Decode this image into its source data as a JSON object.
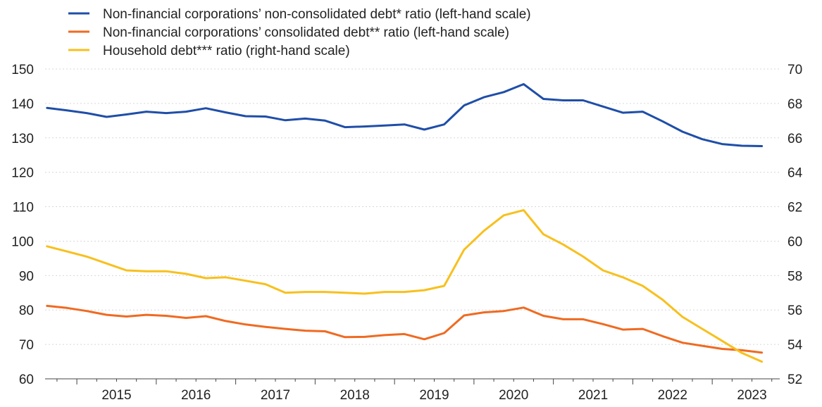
{
  "chart_data": {
    "type": "line",
    "title": "",
    "xlabel": "",
    "ylabel": "",
    "ylim": [
      60,
      150
    ],
    "y2lim": [
      52,
      70
    ],
    "yticks": [
      60,
      70,
      80,
      90,
      100,
      110,
      120,
      130,
      140,
      150
    ],
    "y2ticks": [
      52,
      54,
      56,
      58,
      60,
      62,
      64,
      66,
      68,
      70
    ],
    "xlim": [
      2014.6,
      2023.85
    ],
    "xtick_labels": [
      "2015",
      "2016",
      "2017",
      "2018",
      "2019",
      "2020",
      "2021",
      "2022",
      "2023"
    ],
    "xtick_positions": [
      2015,
      2016,
      2017,
      2018,
      2019,
      2020,
      2021,
      2022,
      2023
    ],
    "grid": "horizontal",
    "legend_position": "top-left",
    "series": [
      {
        "name": "Non-financial corporations’ non-consolidated debt* ratio (left-hand scale)",
        "axis": "left",
        "color": "#1f4ea8",
        "x": [
          2014.625,
          2014.875,
          2015.125,
          2015.375,
          2015.625,
          2015.875,
          2016.125,
          2016.375,
          2016.625,
          2016.875,
          2017.125,
          2017.375,
          2017.625,
          2017.875,
          2018.125,
          2018.375,
          2018.625,
          2018.875,
          2019.125,
          2019.375,
          2019.625,
          2019.875,
          2020.125,
          2020.375,
          2020.625,
          2020.875,
          2021.125,
          2021.375,
          2021.625,
          2021.875,
          2022.125,
          2022.375,
          2022.625,
          2022.875,
          2023.125,
          2023.375,
          2023.625
        ],
        "y": [
          138.7,
          138.0,
          137.2,
          136.1,
          136.8,
          137.6,
          137.2,
          137.6,
          138.6,
          137.4,
          136.3,
          136.2,
          135.1,
          135.6,
          135.0,
          133.1,
          133.3,
          133.6,
          133.9,
          132.4,
          133.9,
          139.4,
          141.8,
          143.3,
          145.6,
          141.3,
          140.9,
          140.9,
          139.1,
          137.3,
          137.6,
          134.8,
          131.8,
          129.6,
          128.2,
          127.7,
          127.6
        ]
      },
      {
        "name": "Non-financial corporations’ consolidated debt** ratio (left-hand scale)",
        "axis": "left",
        "color": "#f06a21",
        "x": [
          2014.625,
          2014.875,
          2015.125,
          2015.375,
          2015.625,
          2015.875,
          2016.125,
          2016.375,
          2016.625,
          2016.875,
          2017.125,
          2017.375,
          2017.625,
          2017.875,
          2018.125,
          2018.375,
          2018.625,
          2018.875,
          2019.125,
          2019.375,
          2019.625,
          2019.875,
          2020.125,
          2020.375,
          2020.625,
          2020.875,
          2021.125,
          2021.375,
          2021.625,
          2021.875,
          2022.125,
          2022.375,
          2022.625,
          2022.875,
          2023.125,
          2023.375,
          2023.625
        ],
        "y": [
          81.2,
          80.6,
          79.7,
          78.6,
          78.1,
          78.6,
          78.3,
          77.7,
          78.2,
          76.8,
          75.8,
          75.1,
          74.5,
          74.0,
          73.8,
          72.1,
          72.2,
          72.7,
          73.0,
          71.5,
          73.3,
          78.4,
          79.3,
          79.7,
          80.7,
          78.3,
          77.3,
          77.3,
          75.9,
          74.3,
          74.5,
          72.4,
          70.5,
          69.6,
          68.7,
          68.3,
          67.6
        ]
      },
      {
        "name": "Household debt*** ratio (right-hand scale)",
        "axis": "right",
        "color": "#f8c01d",
        "x": [
          2014.625,
          2014.875,
          2015.125,
          2015.375,
          2015.625,
          2015.875,
          2016.125,
          2016.375,
          2016.625,
          2016.875,
          2017.125,
          2017.375,
          2017.625,
          2017.875,
          2018.125,
          2018.375,
          2018.625,
          2018.875,
          2019.125,
          2019.375,
          2019.625,
          2019.875,
          2020.125,
          2020.375,
          2020.625,
          2020.875,
          2021.125,
          2021.375,
          2021.625,
          2021.875,
          2022.125,
          2022.375,
          2022.625,
          2022.875,
          2023.125,
          2023.375,
          2023.625
        ],
        "y": [
          59.7,
          59.4,
          59.1,
          58.7,
          58.3,
          58.25,
          58.25,
          58.1,
          57.85,
          57.9,
          57.7,
          57.5,
          57.0,
          57.05,
          57.05,
          57.0,
          56.95,
          57.05,
          57.05,
          57.15,
          57.4,
          59.5,
          60.6,
          61.5,
          61.8,
          60.4,
          59.8,
          59.1,
          58.3,
          57.9,
          57.4,
          56.6,
          55.6,
          54.9,
          54.2,
          53.5,
          53.0
        ]
      }
    ]
  }
}
